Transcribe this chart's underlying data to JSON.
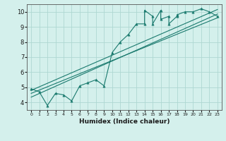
{
  "xlabel": "Humidex (Indice chaleur)",
  "bg_color": "#d4f0ec",
  "line_color": "#1a7a6e",
  "grid_color": "#aed8d2",
  "xlim": [
    -0.5,
    23.5
  ],
  "ylim": [
    3.5,
    10.5
  ],
  "xticks": [
    0,
    1,
    2,
    3,
    4,
    5,
    6,
    7,
    8,
    9,
    10,
    11,
    12,
    13,
    14,
    15,
    16,
    17,
    18,
    19,
    20,
    21,
    22,
    23
  ],
  "yticks": [
    4,
    5,
    6,
    7,
    8,
    9,
    10
  ],
  "scatter_x": [
    0,
    1,
    2,
    3,
    4,
    5,
    6,
    7,
    8,
    9,
    10,
    11,
    12,
    13,
    14,
    14,
    15,
    15,
    16,
    16,
    17,
    17,
    18,
    18,
    19,
    20,
    21,
    22,
    23
  ],
  "scatter_y": [
    4.9,
    4.7,
    3.8,
    4.6,
    4.5,
    4.1,
    5.1,
    5.3,
    5.5,
    5.1,
    7.3,
    8.0,
    8.5,
    9.2,
    9.2,
    10.1,
    9.7,
    9.2,
    10.1,
    9.5,
    9.7,
    9.2,
    9.7,
    9.8,
    10.0,
    10.0,
    10.2,
    10.0,
    9.7
  ],
  "line1_x": [
    0,
    23
  ],
  "line1_y": [
    4.6,
    9.6
  ],
  "line2_x": [
    0,
    23
  ],
  "line2_y": [
    4.8,
    10.15
  ],
  "line3_x": [
    0,
    23
  ],
  "line3_y": [
    4.35,
    9.85
  ]
}
